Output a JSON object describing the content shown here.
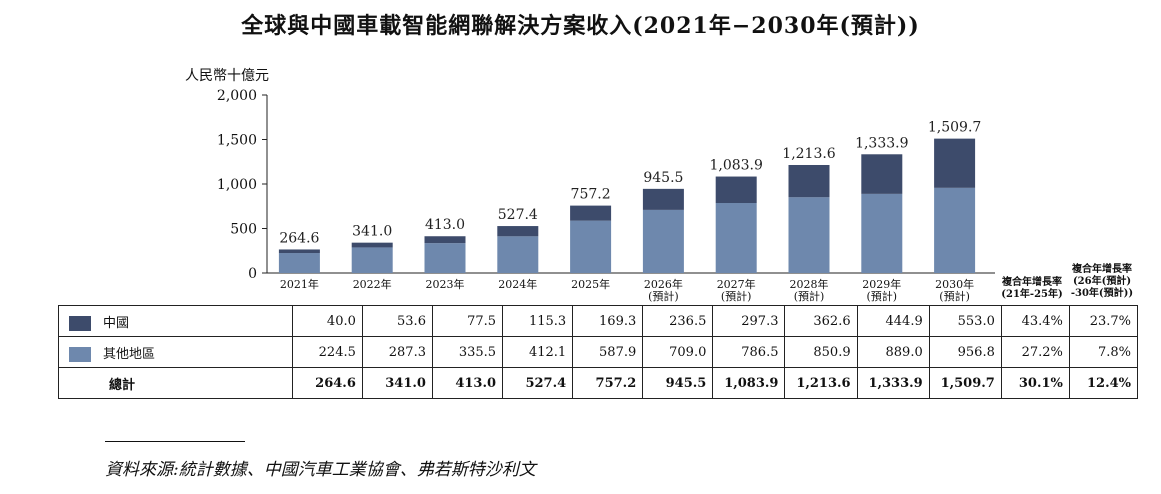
{
  "title": "全球與中國車載智能網聯解決方案收入(2021年−2030年(預計))",
  "colors": {
    "china": "#3d4b6b",
    "other": "#6e88ad"
  },
  "chart_data": {
    "type": "bar",
    "stacked": true,
    "title": "全球與中國車載智能網聯解決方案收入(2021年−2030年(預計))",
    "ylabel": "人民幣十億元",
    "ylim": [
      0,
      2000
    ],
    "yticks": [
      "0",
      "500",
      "1,000",
      "1,500",
      "2,000"
    ],
    "categories": [
      [
        "2021年"
      ],
      [
        "2022年"
      ],
      [
        "2023年"
      ],
      [
        "2024年"
      ],
      [
        "2025年"
      ],
      [
        "2026年",
        "(預計)"
      ],
      [
        "2027年",
        "(預計)"
      ],
      [
        "2028年",
        "(預計)"
      ],
      [
        "2029年",
        "(預計)"
      ],
      [
        "2030年",
        "(預計)"
      ]
    ],
    "series": [
      {
        "name": "中國",
        "values": [
          40.0,
          53.6,
          77.5,
          115.3,
          169.3,
          236.5,
          297.3,
          362.6,
          444.9,
          553.0
        ]
      },
      {
        "name": "其他地區",
        "values": [
          224.5,
          287.3,
          335.5,
          412.1,
          587.9,
          709.0,
          786.5,
          850.9,
          889.0,
          956.8
        ]
      }
    ],
    "totals": [
      264.6,
      341.0,
      413.0,
      527.4,
      757.2,
      945.5,
      1083.9,
      1213.6,
      1333.9,
      1509.7
    ],
    "total_labels": [
      "264.6",
      "341.0",
      "413.0",
      "527.4",
      "757.2",
      "945.5",
      "1,083.9",
      "1,213.6",
      "1,333.9",
      "1,509.7"
    ],
    "cagr_headers": [
      [
        "複合年增長率",
        "(21年-25年)"
      ],
      [
        "複合年增長率",
        "(26年(預計)",
        "-30年(預計))"
      ]
    ]
  },
  "table": {
    "rows": [
      {
        "label": "中國",
        "values": [
          "40.0",
          "53.6",
          "77.5",
          "115.3",
          "169.3",
          "236.5",
          "297.3",
          "362.6",
          "444.9",
          "553.0"
        ],
        "cagr1": "43.4%",
        "cagr2": "23.7%"
      },
      {
        "label": "其他地區",
        "values": [
          "224.5",
          "287.3",
          "335.5",
          "412.1",
          "587.9",
          "709.0",
          "786.5",
          "850.9",
          "889.0",
          "956.8"
        ],
        "cagr1": "27.2%",
        "cagr2": "7.8%"
      },
      {
        "label": "總計",
        "values": [
          "264.6",
          "341.0",
          "413.0",
          "527.4",
          "757.2",
          "945.5",
          "1,083.9",
          "1,213.6",
          "1,333.9",
          "1,509.7"
        ],
        "cagr1": "30.1%",
        "cagr2": "12.4%"
      }
    ]
  },
  "footnote": "資料來源:統計數據、中國汽車工業協會、弗若斯特沙利文"
}
